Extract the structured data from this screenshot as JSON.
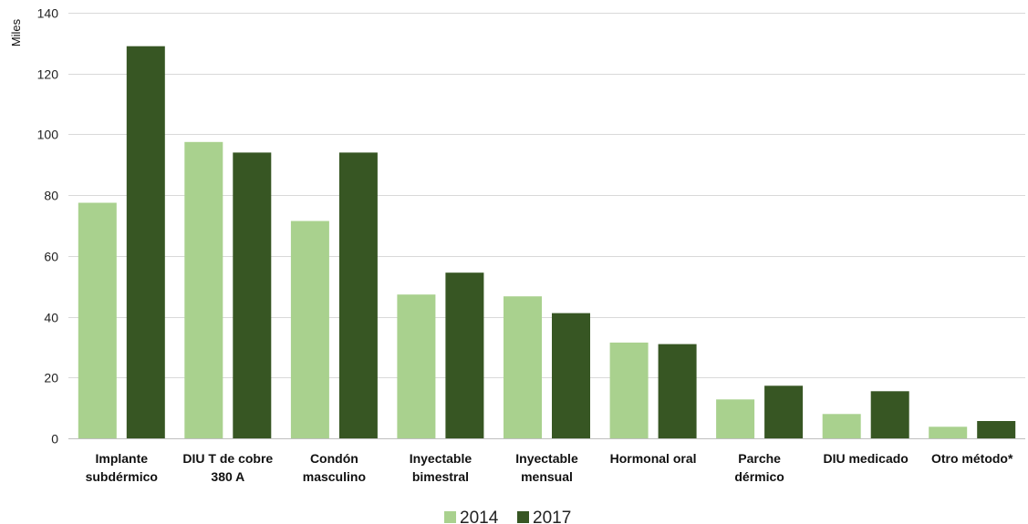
{
  "chart_data": {
    "type": "bar",
    "ylabel": "Miles",
    "ylim": [
      0,
      140
    ],
    "yticks": [
      0,
      20,
      40,
      60,
      80,
      100,
      120,
      140
    ],
    "grid": true,
    "legend_position": "bottom",
    "categories": [
      [
        "Implante",
        "subdérmico"
      ],
      [
        "DIU T de cobre",
        "380 A"
      ],
      [
        "Condón",
        "masculino"
      ],
      [
        "Inyectable",
        "bimestral"
      ],
      [
        "Inyectable",
        "mensual"
      ],
      [
        "Hormonal oral"
      ],
      [
        "Parche",
        "dérmico"
      ],
      [
        "DIU medicado"
      ],
      [
        "Otro método*"
      ]
    ],
    "series": [
      {
        "name": "2014",
        "color": "#a9d18e",
        "values": [
          77.5,
          97.5,
          71.5,
          47.3,
          46.7,
          31.5,
          12.8,
          8.0,
          3.8
        ]
      },
      {
        "name": "2017",
        "color": "#375623",
        "values": [
          129.0,
          94.0,
          94.0,
          54.5,
          41.2,
          31.0,
          17.3,
          15.5,
          5.7
        ]
      }
    ]
  }
}
